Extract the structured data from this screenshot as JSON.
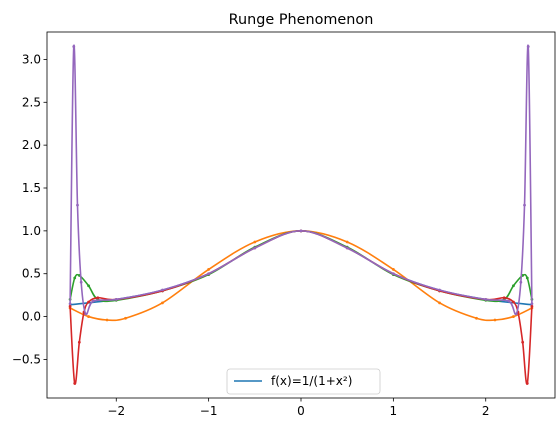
{
  "chart_data": {
    "type": "line",
    "title": "Runge Phenomenon",
    "xlabel": "",
    "ylabel": "",
    "xlim": [
      -2.75,
      2.75
    ],
    "ylim": [
      -0.95,
      3.32
    ],
    "x_ticks": [
      -2,
      -1,
      0,
      1,
      2
    ],
    "x_tick_labels": [
      "−2",
      "−1",
      "0",
      "1",
      "2"
    ],
    "y_ticks": [
      -0.5,
      0.0,
      0.5,
      1.0,
      1.5,
      2.0,
      2.5,
      3.0
    ],
    "y_tick_labels": [
      "−0.5",
      "0.0",
      "0.5",
      "1.0",
      "1.5",
      "2.0",
      "2.5",
      "3.0"
    ],
    "grid": false,
    "legend": {
      "placement": "lower-center",
      "entries": [
        "f(x)=1/(1+x²)"
      ]
    },
    "series": [
      {
        "name": "f(x)=1/(1+x²)",
        "color": "#1f77b4",
        "style": "line",
        "x": [
          -2.5,
          -2.0,
          -1.5,
          -1.0,
          -0.5,
          0.0,
          0.5,
          1.0,
          1.5,
          2.0,
          2.5
        ],
        "values": [
          0.138,
          0.2,
          0.308,
          0.5,
          0.8,
          1.0,
          0.8,
          0.5,
          0.308,
          0.2,
          0.138
        ]
      },
      {
        "color": "#ff7f0e",
        "style": "line-markers",
        "x": [
          -2.5,
          -2.3,
          -2.1,
          -1.9,
          -1.5,
          -1.0,
          -0.5,
          0.0,
          0.5,
          1.0,
          1.5,
          1.9,
          2.1,
          2.3,
          2.5
        ],
        "values": [
          0.1,
          0.0,
          -0.04,
          -0.02,
          0.16,
          0.55,
          0.87,
          1.0,
          0.87,
          0.55,
          0.16,
          -0.02,
          -0.04,
          0.0,
          0.1
        ]
      },
      {
        "color": "#2ca02c",
        "style": "line-markers",
        "x": [
          -2.5,
          -2.45,
          -2.4,
          -2.3,
          -2.2,
          -2.0,
          -1.5,
          -1.0,
          -0.5,
          0.0,
          0.5,
          1.0,
          1.5,
          2.0,
          2.2,
          2.3,
          2.4,
          2.45,
          2.5
        ],
        "values": [
          0.2,
          0.45,
          0.48,
          0.36,
          0.2,
          0.19,
          0.3,
          0.49,
          0.81,
          1.0,
          0.81,
          0.49,
          0.3,
          0.19,
          0.2,
          0.36,
          0.48,
          0.45,
          0.2
        ]
      },
      {
        "color": "#d62728",
        "style": "line-markers",
        "x": [
          -2.5,
          -2.45,
          -2.4,
          -2.35,
          -2.3,
          -2.2,
          -2.0,
          -1.5,
          -1.0,
          -0.5,
          0.0,
          0.5,
          1.0,
          1.5,
          2.0,
          2.2,
          2.3,
          2.35,
          2.4,
          2.45,
          2.5
        ],
        "values": [
          0.12,
          -0.78,
          -0.3,
          0.05,
          0.17,
          0.22,
          0.2,
          0.3,
          0.5,
          0.8,
          1.0,
          0.8,
          0.5,
          0.3,
          0.2,
          0.22,
          0.17,
          0.05,
          -0.3,
          -0.78,
          0.12
        ]
      },
      {
        "color": "#9467bd",
        "style": "line-markers",
        "x": [
          -2.5,
          -2.46,
          -2.42,
          -2.38,
          -2.33,
          -2.25,
          -2.0,
          -1.5,
          -1.0,
          -0.5,
          0.0,
          0.5,
          1.0,
          1.5,
          2.0,
          2.25,
          2.33,
          2.38,
          2.42,
          2.46,
          2.5
        ],
        "values": [
          0.15,
          3.15,
          1.3,
          0.4,
          0.03,
          0.18,
          0.2,
          0.31,
          0.5,
          0.8,
          1.0,
          0.8,
          0.5,
          0.31,
          0.2,
          0.18,
          0.03,
          0.4,
          1.3,
          3.15,
          0.15
        ]
      }
    ]
  }
}
